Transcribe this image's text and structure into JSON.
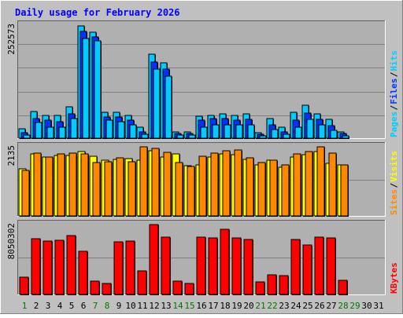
{
  "title": "Daily usage for February 2026",
  "colors": {
    "background": "#c0c0c0",
    "plot_background": "#b0b0b0",
    "gridline": "#808080",
    "border": "#000000",
    "title": "#0000ff",
    "hits": "#00ccff",
    "files": "#0033ff",
    "pages": "#00ccff",
    "visits": "#ffff00",
    "sites": "#ff8800",
    "kbytes": "#ff0000",
    "weekday_label": "#000000",
    "weekend_label": "#007700"
  },
  "chart_data": [
    {
      "type": "bar",
      "name": "hits-files-pages",
      "categories": [
        "1",
        "2",
        "3",
        "4",
        "5",
        "6",
        "7",
        "8",
        "9",
        "10",
        "11",
        "12",
        "13",
        "14",
        "15",
        "16",
        "17",
        "18",
        "19",
        "20",
        "21",
        "22",
        "23",
        "24",
        "25",
        "26",
        "27",
        "28",
        "29",
        "30",
        "31"
      ],
      "series": [
        {
          "name": "Hits",
          "values": [
            22000,
            60000,
            52000,
            52000,
            70000,
            252573,
            238000,
            58000,
            58000,
            52000,
            24000,
            190000,
            170000,
            15000,
            15000,
            50000,
            52000,
            54000,
            52000,
            54000,
            13000,
            45000,
            24000,
            58000,
            74000,
            54000,
            42000,
            15000,
            null,
            null,
            null
          ]
        },
        {
          "name": "Files",
          "values": [
            12000,
            45000,
            40000,
            38000,
            55000,
            240000,
            228000,
            48000,
            48000,
            40000,
            14000,
            172000,
            155000,
            10000,
            10000,
            40000,
            44000,
            44000,
            40000,
            42000,
            8000,
            30000,
            14000,
            40000,
            56000,
            42000,
            28000,
            10000,
            null,
            null,
            null
          ]
        },
        {
          "name": "Pages",
          "values": [
            7000,
            35000,
            25000,
            25000,
            45000,
            225000,
            220000,
            40000,
            38000,
            30000,
            8000,
            155000,
            140000,
            7000,
            7000,
            25000,
            30000,
            30000,
            30000,
            30000,
            5000,
            20000,
            8000,
            25000,
            43000,
            30000,
            17000,
            6000,
            null,
            null,
            null
          ]
        }
      ],
      "legend": [
        "Pages",
        "Files",
        "Hits"
      ],
      "ylabel_top": "252573",
      "ylim": [
        0,
        260000
      ]
    },
    {
      "type": "bar",
      "name": "visits-sites",
      "categories": [
        "1",
        "2",
        "3",
        "4",
        "5",
        "6",
        "7",
        "8",
        "9",
        "10",
        "11",
        "12",
        "13",
        "14",
        "15",
        "16",
        "17",
        "18",
        "19",
        "20",
        "21",
        "22",
        "23",
        "24",
        "25",
        "26",
        "27",
        "28",
        "29",
        "30",
        "31"
      ],
      "series": [
        {
          "name": "Visits",
          "values": [
            1450,
            1910,
            1810,
            1870,
            1850,
            1990,
            1840,
            1720,
            1740,
            1760,
            1720,
            2010,
            1810,
            1910,
            1550,
            1580,
            1810,
            1910,
            1890,
            1730,
            1560,
            1720,
            1500,
            1810,
            1890,
            1990,
            1630,
            1560,
            null,
            null,
            null
          ]
        },
        {
          "name": "Sites",
          "values": [
            1400,
            1930,
            1820,
            1900,
            1940,
            1920,
            1650,
            1660,
            1780,
            1670,
            2130,
            2080,
            1950,
            1650,
            1530,
            1830,
            1930,
            2010,
            2040,
            1790,
            1640,
            1710,
            1570,
            1900,
            1990,
            2135,
            1940,
            1560,
            null,
            null,
            null
          ]
        }
      ],
      "legend": [
        "Sites",
        "Visits"
      ],
      "ylabel_top": "2135",
      "ylim": [
        0,
        2200
      ]
    },
    {
      "type": "bar",
      "name": "kbytes",
      "categories": [
        "1",
        "2",
        "3",
        "4",
        "5",
        "6",
        "7",
        "8",
        "9",
        "10",
        "11",
        "12",
        "13",
        "14",
        "15",
        "16",
        "17",
        "18",
        "19",
        "20",
        "21",
        "22",
        "23",
        "24",
        "25",
        "26",
        "27",
        "28",
        "29",
        "30",
        "31"
      ],
      "series": [
        {
          "name": "KBytes",
          "values": [
            2000000,
            6400000,
            6100000,
            6200000,
            6800000,
            5000000,
            1500000,
            1300000,
            6000000,
            6100000,
            2700000,
            8050302,
            6600000,
            1500000,
            1300000,
            6600000,
            6500000,
            7500000,
            6500000,
            6300000,
            1400000,
            2300000,
            2200000,
            6300000,
            5700000,
            6600000,
            6500000,
            1600000,
            null,
            null,
            null
          ]
        }
      ],
      "legend": [
        "KBytes"
      ],
      "ylabel_top": "8050302",
      "ylim": [
        0,
        8300000
      ]
    }
  ],
  "day_labels": [
    "1",
    "2",
    "3",
    "4",
    "5",
    "6",
    "7",
    "8",
    "9",
    "10",
    "11",
    "12",
    "13",
    "14",
    "15",
    "16",
    "17",
    "18",
    "19",
    "20",
    "21",
    "22",
    "23",
    "24",
    "25",
    "26",
    "27",
    "28",
    "29",
    "30",
    "31"
  ],
  "weekend_days": [
    "1",
    "7",
    "8",
    "14",
    "15",
    "21",
    "22",
    "28",
    "29"
  ],
  "legend_text": {
    "top": [
      "Pages",
      "/",
      "Files",
      "/",
      "Hits"
    ],
    "middle": [
      "Sites",
      "/",
      "Visits"
    ],
    "bottom": [
      "KBytes"
    ]
  }
}
